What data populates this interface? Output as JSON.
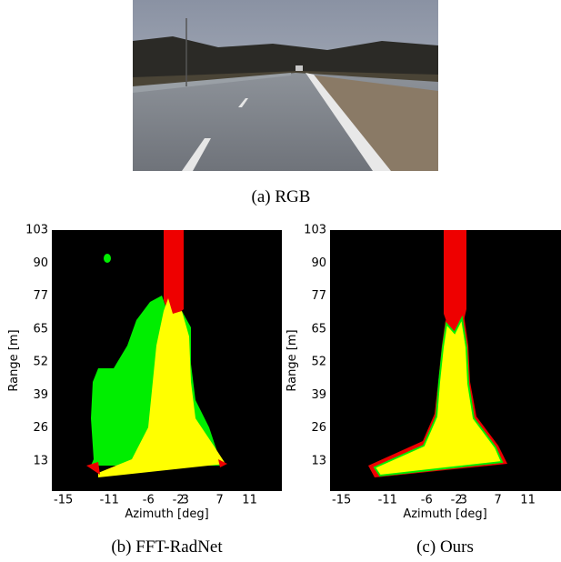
{
  "panels": [
    {
      "caption": "(a) RGB"
    },
    {
      "caption": "(b) FFT-RadNet",
      "y_label": "Range [m]",
      "x_label": "Azimuth [deg]",
      "y_ticks": [
        103,
        90,
        77,
        65,
        52,
        39,
        26,
        13
      ],
      "x_ticks": [
        -15,
        -11,
        -6,
        -2,
        3,
        7,
        11
      ]
    },
    {
      "caption": "(c) Ours",
      "y_label": "Range [m]",
      "x_label": "Azimuth [deg]",
      "y_ticks": [
        103,
        90,
        77,
        65,
        52,
        39,
        26,
        13
      ],
      "x_ticks": [
        -15,
        -11,
        -6,
        -2,
        3,
        7,
        11
      ]
    }
  ]
}
